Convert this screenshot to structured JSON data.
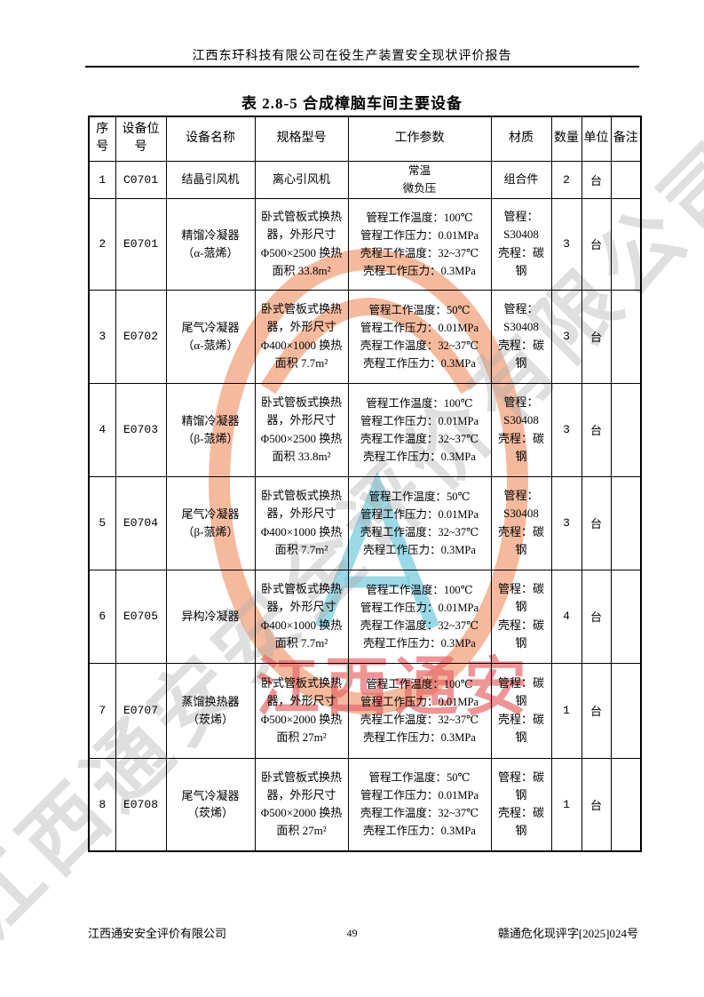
{
  "page": {
    "header_title": "江西东玕科技有限公司在役生产装置安全现状评价报告",
    "footer_left": "江西通安安全评价有限公司",
    "footer_page": "49",
    "footer_right": "赣通危化现评字[2025]024号"
  },
  "table": {
    "title": "表 2.8-5 合成樟脑车间主要设备",
    "columns": [
      "序号",
      "设备位号",
      "设备名称",
      "规格型号",
      "工作参数",
      "材质",
      "数量",
      "单位",
      "备注"
    ],
    "rows": [
      {
        "no": "1",
        "tag": "C0701",
        "name": [
          "结晶引风机"
        ],
        "spec": "离心引风机",
        "params": [
          "常温",
          "微负压"
        ],
        "material": [
          "组合件"
        ],
        "qty": "2",
        "unit": "台",
        "remark": ""
      },
      {
        "no": "2",
        "tag": "E0701",
        "name": [
          "精馏冷凝器",
          "（α-蒎烯）"
        ],
        "spec": "卧式管板式换热器，外形尺寸Φ500×2500 换热面积 33.8m²",
        "params": [
          "管程工作温度：100℃",
          "管程工作压力：0.01MPa",
          "壳程工作温度：32~37℃",
          "壳程工作压力：0.3MPa"
        ],
        "material": [
          "管程：S30408",
          "壳程：碳钢"
        ],
        "qty": "3",
        "unit": "台",
        "remark": ""
      },
      {
        "no": "3",
        "tag": "E0702",
        "name": [
          "尾气冷凝器",
          "（α-蒎烯）"
        ],
        "spec": "卧式管板式换热器，外形尺寸Φ400×1000 换热面积 7.7m²",
        "params": [
          "管程工作温度：50℃",
          "管程工作压力：0.01MPa",
          "壳程工作温度：32~37℃",
          "壳程工作压力：0.3MPa"
        ],
        "material": [
          "管程：S30408",
          "壳程：碳钢"
        ],
        "qty": "3",
        "unit": "台",
        "remark": ""
      },
      {
        "no": "4",
        "tag": "E0703",
        "name": [
          "精馏冷凝器",
          "（β-蒎烯）"
        ],
        "spec": "卧式管板式换热器，外形尺寸Φ500×2500 换热面积 33.8m²",
        "params": [
          "管程工作温度：100℃",
          "管程工作压力：0.01MPa",
          "壳程工作温度：32~37℃",
          "壳程工作压力：0.3MPa"
        ],
        "material": [
          "管程：S30408",
          "壳程：碳钢"
        ],
        "qty": "3",
        "unit": "台",
        "remark": ""
      },
      {
        "no": "5",
        "tag": "E0704",
        "name": [
          "尾气冷凝器",
          "（β-蒎烯）"
        ],
        "spec": "卧式管板式换热器，外形尺寸Φ400×1000 换热面积 7.7m²",
        "params": [
          "管程工作温度：50℃",
          "管程工作压力：0.01MPa",
          "壳程工作温度：32~37℃",
          "壳程工作压力：0.3MPa"
        ],
        "material": [
          "管程：S30408",
          "壳程：碳钢"
        ],
        "qty": "3",
        "unit": "台",
        "remark": ""
      },
      {
        "no": "6",
        "tag": "E0705",
        "name": [
          "异构冷凝器"
        ],
        "spec": "卧式管板式换热器，外形尺寸Φ400×1000 换热面积 7.7m²",
        "params": [
          "管程工作温度：100℃",
          "管程工作压力：0.01MPa",
          "壳程工作温度：32~37℃",
          "壳程工作压力：0.3MPa"
        ],
        "material": [
          "管程：碳钢",
          "壳程：碳钢"
        ],
        "qty": "4",
        "unit": "台",
        "remark": ""
      },
      {
        "no": "7",
        "tag": "E0707",
        "name": [
          "蒸馏换热器",
          "（莰烯）"
        ],
        "spec": "卧式管板式换热器，外形尺寸Φ500×2000 换热面积 27m²",
        "params": [
          "管程工作温度：100℃",
          "管程工作压力：0.01MPa",
          "壳程工作温度：32~37℃",
          "壳程工作压力：0.3MPa"
        ],
        "material": [
          "管程：碳钢",
          "壳程：碳钢"
        ],
        "qty": "1",
        "unit": "台",
        "remark": ""
      },
      {
        "no": "8",
        "tag": "E0708",
        "name": [
          "尾气冷凝器",
          "（莰烯）"
        ],
        "spec": "卧式管板式换热器，外形尺寸Φ500×2000 换热面积 27m²",
        "params": [
          "管程工作温度：50℃",
          "管程工作压力：0.01MPa",
          "壳程工作温度：32~37℃",
          "壳程工作压力：0.3MPa"
        ],
        "material": [
          "管程：碳钢",
          "壳程：碳钢"
        ],
        "qty": "1",
        "unit": "台",
        "remark": ""
      }
    ]
  },
  "watermark": {
    "red_text": "江西通安",
    "diagonal_text": "江西通安安全评价有限公司",
    "ring_color": "#f09a70",
    "cyan_color": "#82cfe0",
    "red_color": "#e46a6a",
    "gray_color": "#acacac"
  }
}
